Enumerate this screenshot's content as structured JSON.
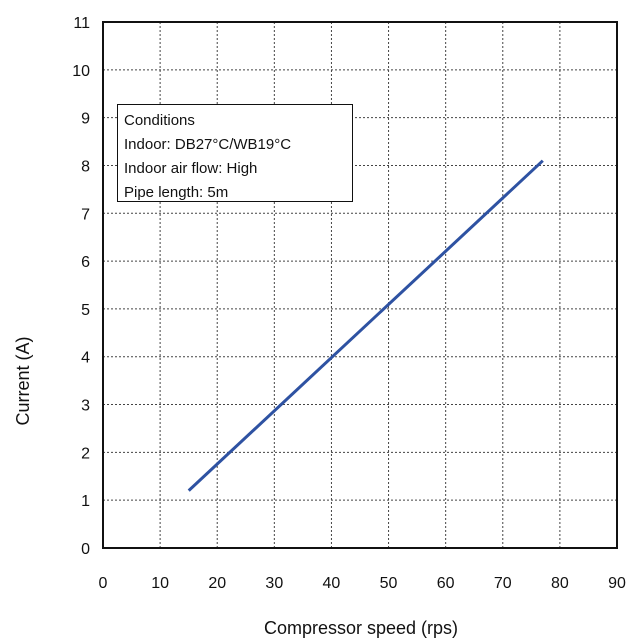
{
  "chart_data": {
    "type": "line",
    "title": "",
    "xlabel": "Compressor speed (rps)",
    "ylabel": "Current (A)",
    "xlim": [
      0,
      90
    ],
    "ylim": [
      0,
      11
    ],
    "x_ticks": [
      0,
      10,
      20,
      30,
      40,
      50,
      60,
      70,
      80,
      90
    ],
    "y_ticks": [
      0,
      1,
      2,
      3,
      4,
      5,
      6,
      7,
      8,
      9,
      10,
      11
    ],
    "grid": true,
    "series": [
      {
        "x": [
          15,
          77
        ],
        "y": [
          1.2,
          8.1
        ],
        "color": "#2e52a2"
      }
    ],
    "annotations": {
      "conditions": [
        "Conditions",
        "Indoor: DB27°C/WB19°C",
        "Indoor air flow: High",
        "Pipe length: 5m"
      ]
    }
  }
}
